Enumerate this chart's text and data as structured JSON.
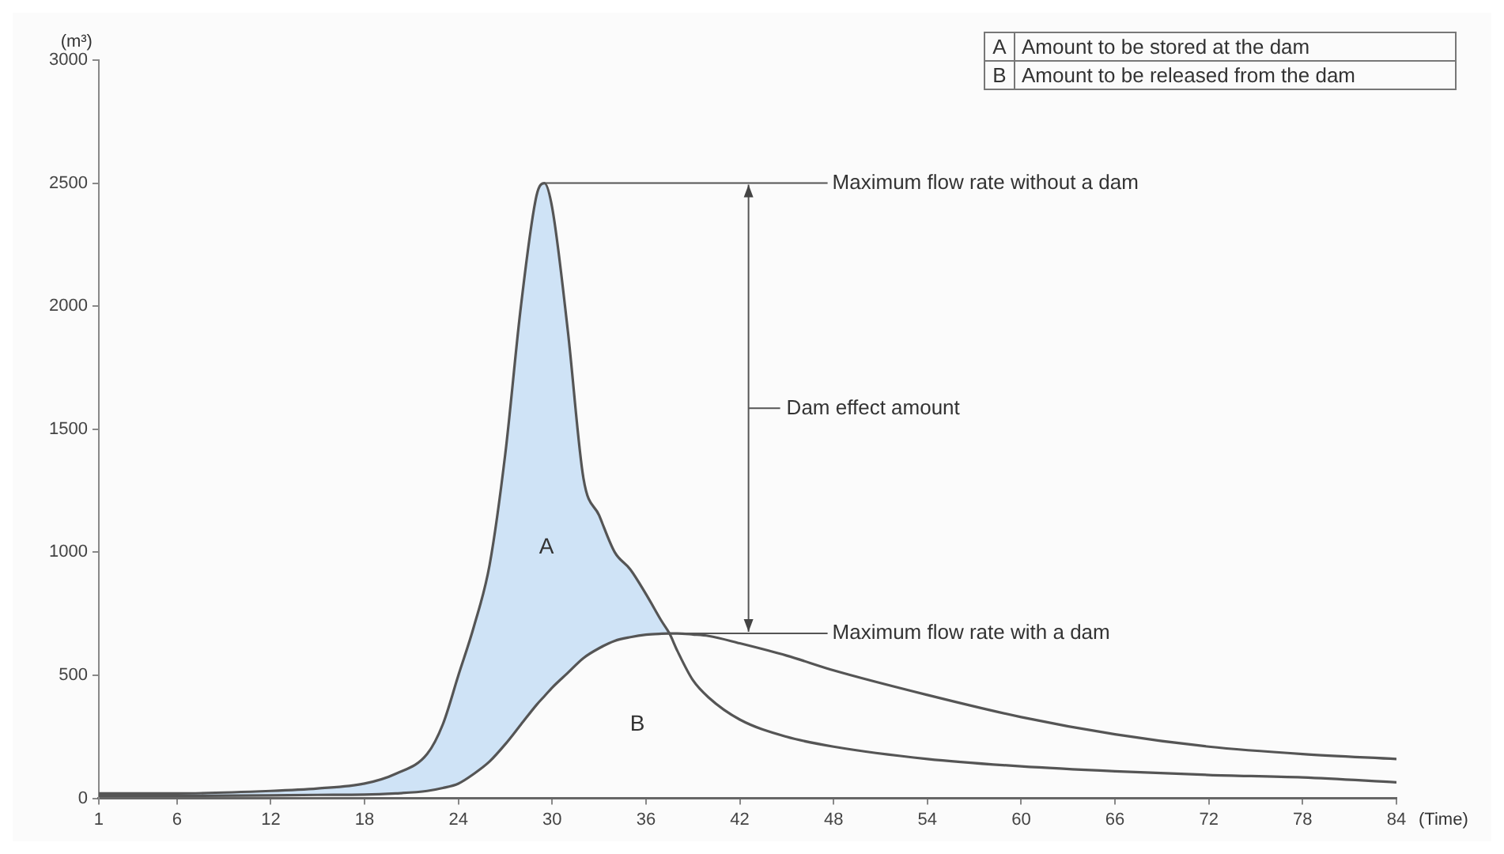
{
  "chart_data": {
    "type": "line",
    "xlabel": "(Time)",
    "ylabel": "(m³)",
    "xlim": [
      1,
      84
    ],
    "xticks": [
      1,
      6,
      12,
      18,
      24,
      30,
      36,
      42,
      48,
      54,
      60,
      66,
      72,
      78,
      84
    ],
    "ylim": [
      0,
      3000
    ],
    "yticks": [
      0,
      500,
      1000,
      1500,
      2000,
      2500,
      3000
    ],
    "grid": false,
    "marker": "none",
    "line_style": "solid",
    "x": [
      1,
      6,
      12,
      15,
      18,
      20,
      22,
      23,
      24,
      25,
      26,
      27,
      28,
      29,
      29.5,
      30,
      31,
      32,
      33,
      34,
      35,
      36,
      37,
      37.5,
      38,
      39,
      40,
      42,
      45,
      48,
      54,
      60,
      66,
      72,
      78,
      84
    ],
    "series": [
      {
        "type": "line",
        "color": "#555555",
        "values": [
          20,
          20,
          30,
          40,
          60,
          100,
          180,
          300,
          500,
          700,
          950,
          1400,
          2000,
          2450,
          2500,
          2400,
          1900,
          1300,
          1150,
          1000,
          930,
          830,
          720,
          670,
          600,
          480,
          410,
          320,
          250,
          210,
          160,
          130,
          110,
          95,
          85,
          65
        ],
        "upper": [
          20,
          20,
          30,
          40,
          60,
          100,
          180,
          300,
          500,
          700,
          950,
          1400,
          2000,
          2450,
          2500,
          2400,
          1900,
          1300,
          1150,
          1000,
          930,
          830,
          720,
          670,
          null,
          null,
          null,
          null,
          null,
          null,
          null,
          null,
          null,
          null,
          null,
          null
        ],
        "lower": [
          10,
          10,
          12,
          14,
          15,
          20,
          30,
          42,
          60,
          100,
          150,
          220,
          300,
          380,
          415,
          450,
          510,
          570,
          610,
          640,
          655,
          665,
          669,
          670,
          null,
          null,
          null,
          null,
          null,
          null,
          null,
          null,
          null,
          null,
          null,
          null
        ]
      },
      {
        "type": "line",
        "color": "#555555",
        "values": [
          10,
          10,
          12,
          14,
          15,
          20,
          30,
          42,
          60,
          100,
          150,
          220,
          300,
          380,
          415,
          450,
          510,
          570,
          610,
          640,
          655,
          665,
          669,
          670,
          670,
          666,
          660,
          630,
          580,
          520,
          420,
          330,
          260,
          210,
          180,
          160
        ]
      }
    ],
    "annotations": [
      {
        "text": "Maximum flow rate without a dam",
        "x": 29.5,
        "y": 2500
      },
      {
        "text": "Maximum flow rate with a dam",
        "x": 37.5,
        "y": 670
      },
      "Dam effect amount",
      "A",
      "B",
      "Amount to be stored at the dam",
      "Amount to be released from the dam"
    ]
  }
}
